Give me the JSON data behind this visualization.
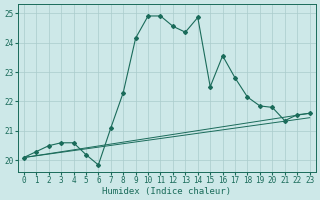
{
  "xlabel": "Humidex (Indice chaleur)",
  "xlim_min": -0.5,
  "xlim_max": 23.5,
  "ylim_min": 19.6,
  "ylim_max": 25.3,
  "yticks": [
    20,
    21,
    22,
    23,
    24,
    25
  ],
  "xticks": [
    0,
    1,
    2,
    3,
    4,
    5,
    6,
    7,
    8,
    9,
    10,
    11,
    12,
    13,
    14,
    15,
    16,
    17,
    18,
    19,
    20,
    21,
    22,
    23
  ],
  "bg_color": "#cde8e8",
  "line_color": "#1a6b5a",
  "grid_color": "#aacccc",
  "main_x": [
    0,
    1,
    2,
    3,
    4,
    5,
    6,
    7,
    8,
    9,
    10,
    11,
    12,
    13,
    14,
    15,
    16,
    17,
    18,
    19,
    20,
    21,
    22,
    23
  ],
  "main_y": [
    20.1,
    20.3,
    20.5,
    20.6,
    20.6,
    20.2,
    19.85,
    21.1,
    22.3,
    24.15,
    24.9,
    24.9,
    24.55,
    24.35,
    24.85,
    22.5,
    23.55,
    22.8,
    22.15,
    21.85,
    21.8,
    21.35,
    21.55,
    21.6
  ],
  "trend1_x": [
    0,
    23
  ],
  "trend1_y": [
    20.1,
    21.6
  ],
  "trend2_x": [
    0,
    23
  ],
  "trend2_y": [
    20.1,
    21.45
  ],
  "tick_fontsize": 5.5,
  "xlabel_fontsize": 6.5
}
